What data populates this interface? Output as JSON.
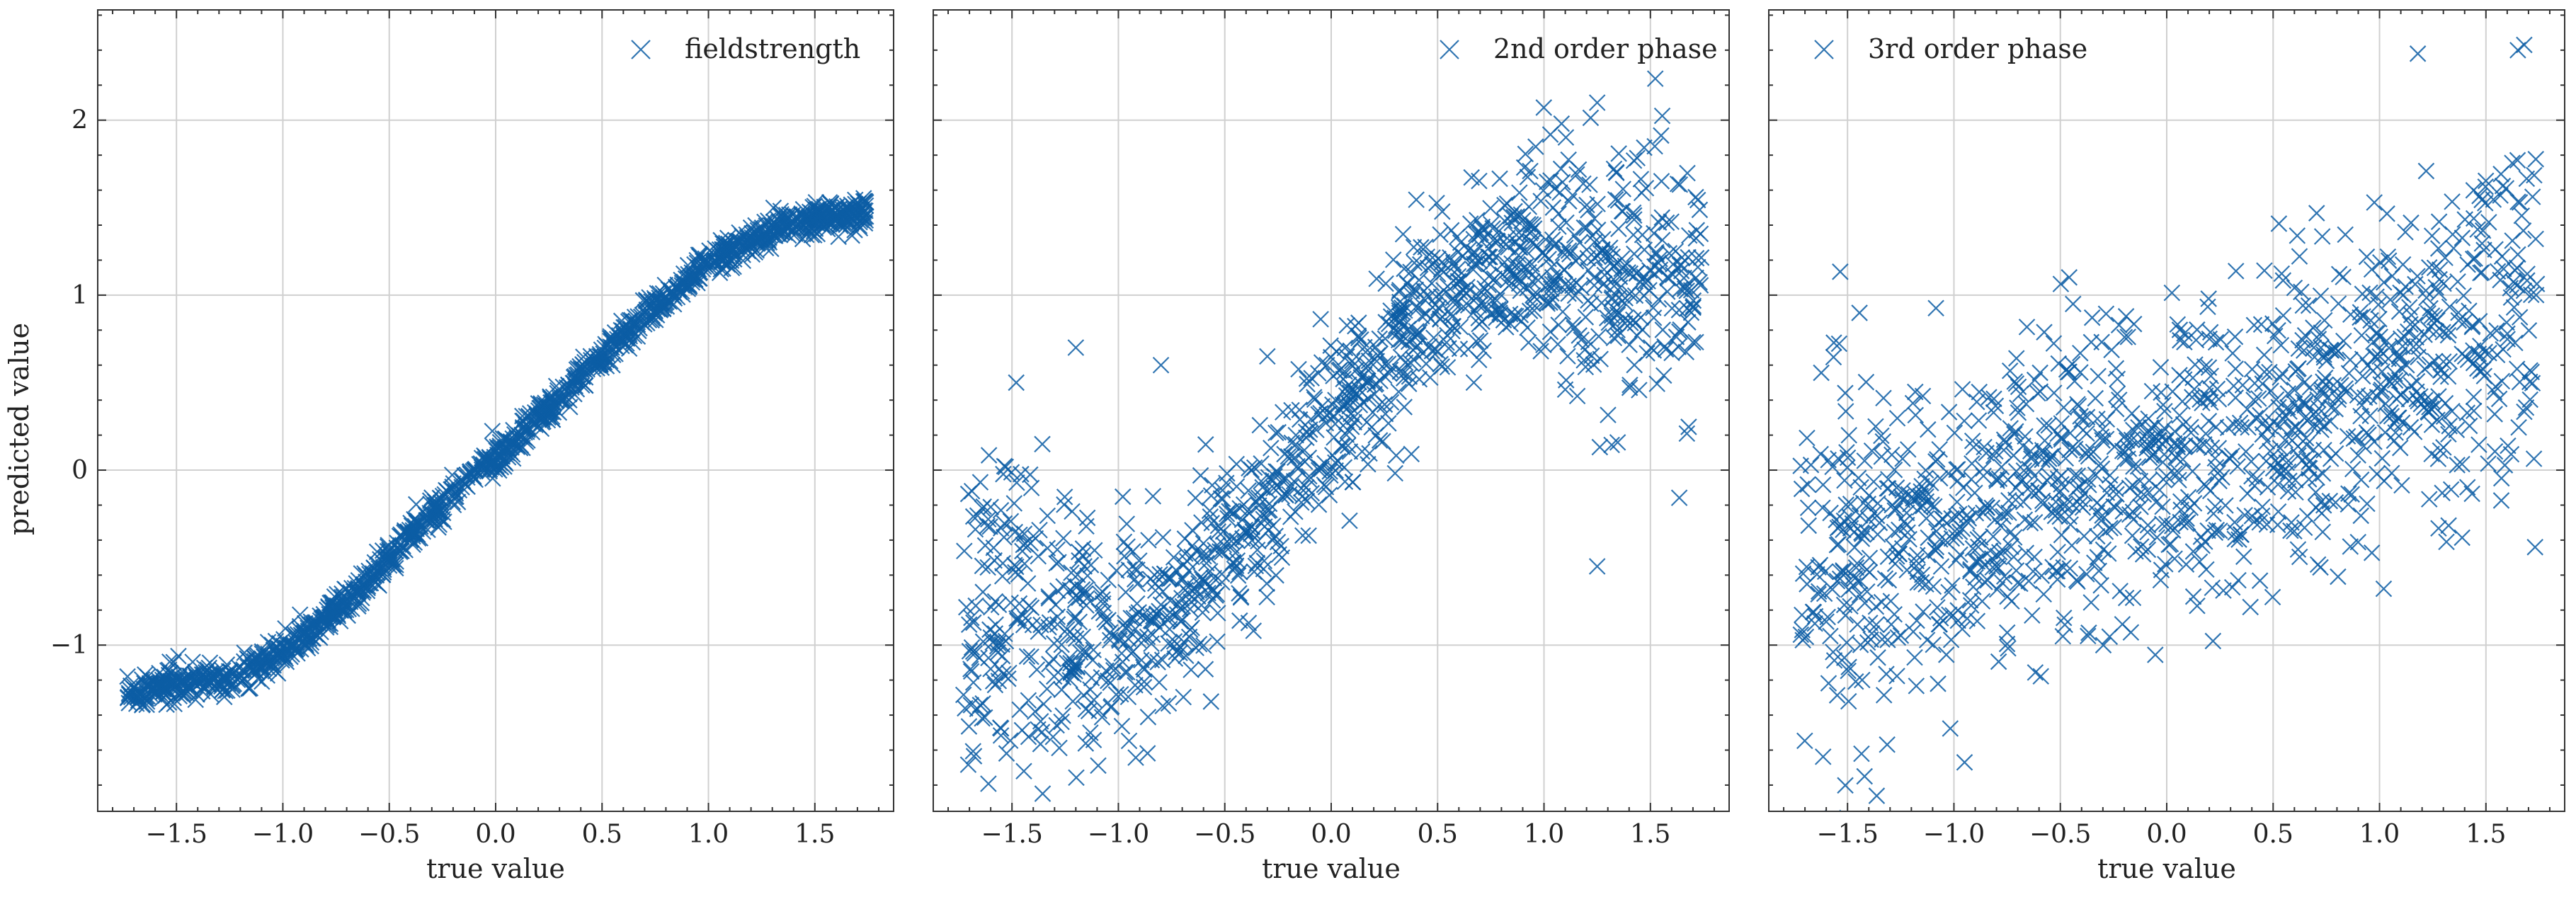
{
  "chart_data": [
    {
      "type": "scatter",
      "xlabel": "true value",
      "ylabel": "predicted value",
      "legend": "fieldstrength",
      "legend_position": "top-right",
      "xlim": [
        -1.87,
        1.87
      ],
      "ylim": [
        -1.95,
        2.63
      ],
      "xticks": [
        "−1.5",
        "−1.0",
        "−0.5",
        "0.0",
        "0.5",
        "1.0",
        "1.5"
      ],
      "yticks": [
        "−1",
        "0",
        "1",
        "2"
      ],
      "grid": true,
      "marker": "x",
      "color": "#0c5da5",
      "series": [
        {
          "x": [
            -1.72,
            -1.6,
            -1.48,
            -1.36,
            -1.3,
            -1.2,
            -1.1,
            -1.0,
            -0.9,
            -0.8,
            -0.7,
            -0.6,
            -0.5,
            -0.4,
            -0.3,
            -0.2,
            -0.1,
            0.0,
            0.1,
            0.2,
            0.3,
            0.4,
            0.5,
            0.6,
            0.7,
            0.8,
            0.9,
            1.0,
            1.1,
            1.2,
            1.3,
            1.4,
            1.5,
            1.6,
            1.7,
            1.74
          ],
          "y": [
            -1.27,
            -1.25,
            -1.22,
            -1.2,
            -1.2,
            -1.16,
            -1.1,
            -1.03,
            -0.95,
            -0.85,
            -0.74,
            -0.62,
            -0.5,
            -0.37,
            -0.25,
            -0.13,
            -0.03,
            0.07,
            0.17,
            0.3,
            0.41,
            0.53,
            0.65,
            0.77,
            0.88,
            0.99,
            1.08,
            1.17,
            1.25,
            1.31,
            1.37,
            1.41,
            1.44,
            1.46,
            1.47,
            1.48
          ]
        }
      ]
    },
    {
      "type": "scatter",
      "xlabel": "true value",
      "ylabel": "",
      "legend": "2nd order phase",
      "legend_position": "top-right",
      "xlim": [
        -1.87,
        1.87
      ],
      "ylim": [
        -1.95,
        2.63
      ],
      "xticks": [
        "−1.5",
        "−1.0",
        "−0.5",
        "0.0",
        "0.5",
        "1.0",
        "1.5"
      ],
      "grid": true,
      "marker": "x",
      "color": "#0c5da5",
      "series": [
        {
          "x": [
            -1.7,
            -1.6,
            -1.5,
            -1.4,
            -1.3,
            -1.2,
            -1.1,
            -1.0,
            -0.9,
            -0.8,
            -0.7,
            -0.6,
            -0.5,
            -0.4,
            -0.3,
            -0.2,
            -0.1,
            0.0,
            0.1,
            0.2,
            0.3,
            0.4,
            0.5,
            0.6,
            0.7,
            0.8,
            0.9,
            1.0,
            1.1,
            1.2,
            1.3,
            1.4,
            1.5,
            1.6,
            1.7,
            1.25,
            -1.2,
            -1.48,
            -0.8,
            -0.3,
            1.25
          ],
          "y": [
            -1.1,
            -1.08,
            -1.05,
            -1.05,
            -1.05,
            -1.02,
            -1.0,
            -0.98,
            -0.95,
            -0.85,
            -0.75,
            -0.62,
            -0.48,
            -0.38,
            -0.22,
            -0.05,
            0.1,
            0.25,
            0.38,
            0.55,
            0.68,
            0.8,
            0.92,
            1.02,
            1.1,
            1.15,
            1.18,
            1.2,
            1.18,
            1.15,
            1.12,
            1.1,
            1.1,
            1.08,
            1.05,
            2.1,
            0.7,
            0.5,
            0.6,
            0.65,
            -0.55
          ]
        }
      ]
    },
    {
      "type": "scatter",
      "xlabel": "true value",
      "ylabel": "",
      "legend": "3rd order phase",
      "legend_position": "top-left",
      "xlim": [
        -1.87,
        1.87
      ],
      "ylim": [
        -1.95,
        2.63
      ],
      "xticks": [
        "−1.5",
        "−1.0",
        "−0.5",
        "0.0",
        "0.5",
        "1.0",
        "1.5"
      ],
      "grid": true,
      "marker": "x",
      "color": "#0c5da5",
      "series": [
        {
          "x": [
            -1.7,
            -1.6,
            -1.5,
            -1.4,
            -1.3,
            -1.2,
            -1.1,
            -1.0,
            -0.9,
            -0.8,
            -0.7,
            -0.6,
            -0.5,
            -0.4,
            -0.3,
            -0.2,
            -0.1,
            0.0,
            0.1,
            0.2,
            0.3,
            0.4,
            0.5,
            0.6,
            0.7,
            0.8,
            0.9,
            1.0,
            1.1,
            1.2,
            1.3,
            1.4,
            1.5,
            1.6,
            1.7,
            1.65,
            1.68,
            1.18,
            -1.42,
            -0.95
          ],
          "y": [
            -0.6,
            -0.55,
            -0.5,
            -0.5,
            -0.45,
            -0.4,
            -0.35,
            -0.35,
            -0.3,
            -0.2,
            -0.15,
            -0.1,
            -0.05,
            -0.05,
            0.0,
            0.0,
            0.0,
            0.05,
            0.05,
            0.1,
            0.12,
            0.15,
            0.2,
            0.25,
            0.3,
            0.35,
            0.45,
            0.55,
            0.6,
            0.65,
            0.7,
            0.75,
            0.8,
            0.85,
            0.85,
            2.4,
            2.43,
            2.38,
            -1.75,
            -1.67
          ]
        }
      ]
    }
  ]
}
